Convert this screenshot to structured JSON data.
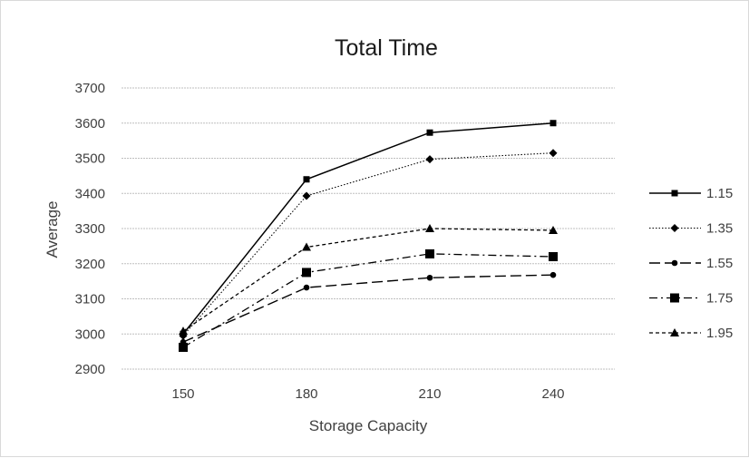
{
  "chart_data": {
    "type": "line",
    "title": "Total Time",
    "xlabel": "Storage Capacity",
    "ylabel": "Average",
    "categories": [
      "150",
      "180",
      "210",
      "240"
    ],
    "ylim": [
      2900,
      3700
    ],
    "yticks": [
      2900,
      3000,
      3100,
      3200,
      3300,
      3400,
      3500,
      3600,
      3700
    ],
    "grid": true,
    "legend_position": "right",
    "series": [
      {
        "name": "1.15",
        "values": [
          3000,
          3440,
          3573,
          3600
        ],
        "marker": "square-small",
        "dash": "solid"
      },
      {
        "name": "1.35",
        "values": [
          2995,
          3393,
          3497,
          3515
        ],
        "marker": "diamond",
        "dash": "dotted"
      },
      {
        "name": "1.55",
        "values": [
          2977,
          3132,
          3160,
          3168
        ],
        "marker": "circle",
        "dash": "long-dash"
      },
      {
        "name": "1.75",
        "values": [
          2962,
          3175,
          3228,
          3220
        ],
        "marker": "square",
        "dash": "dash-dot"
      },
      {
        "name": "1.95",
        "values": [
          3008,
          3247,
          3300,
          3295
        ],
        "marker": "triangle",
        "dash": "short-dash"
      }
    ],
    "colors": {
      "line": "#000000",
      "grid": "#bfbfbf",
      "text": "#404040"
    }
  }
}
